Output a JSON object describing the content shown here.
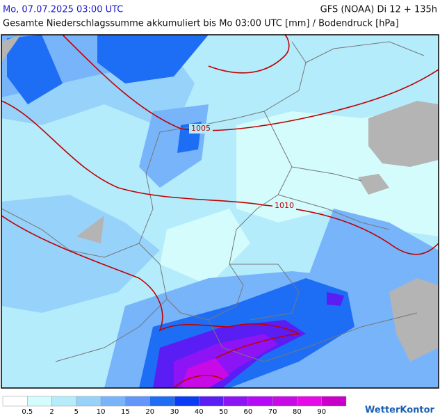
{
  "header": {
    "valid_time": "Mo, 07.07.2025 03:00 UTC",
    "model": "GFS (NOAA) Di 12 + 135h",
    "subtitle": "Gesamte Niederschlagssumme akkumuliert bis Mo 03:00 UTC [mm] / Bodendruck [hPa]"
  },
  "map": {
    "isobar_labels": [
      "1005",
      "1010"
    ]
  },
  "legend": {
    "colors": [
      "#ffffff",
      "#d4fcfc",
      "#b4ecfc",
      "#96d2fa",
      "#78b4fa",
      "#6496fa",
      "#1e6ef5",
      "#0a3cf5",
      "#5a1ef5",
      "#8c14f5",
      "#b40af5",
      "#c80ae6",
      "#e60ae6",
      "#c800c8"
    ],
    "labels": [
      "0.5",
      "2",
      "5",
      "10",
      "15",
      "20",
      "30",
      "40",
      "50",
      "60",
      "70",
      "80",
      "90"
    ]
  },
  "logo": "WetterKontor"
}
